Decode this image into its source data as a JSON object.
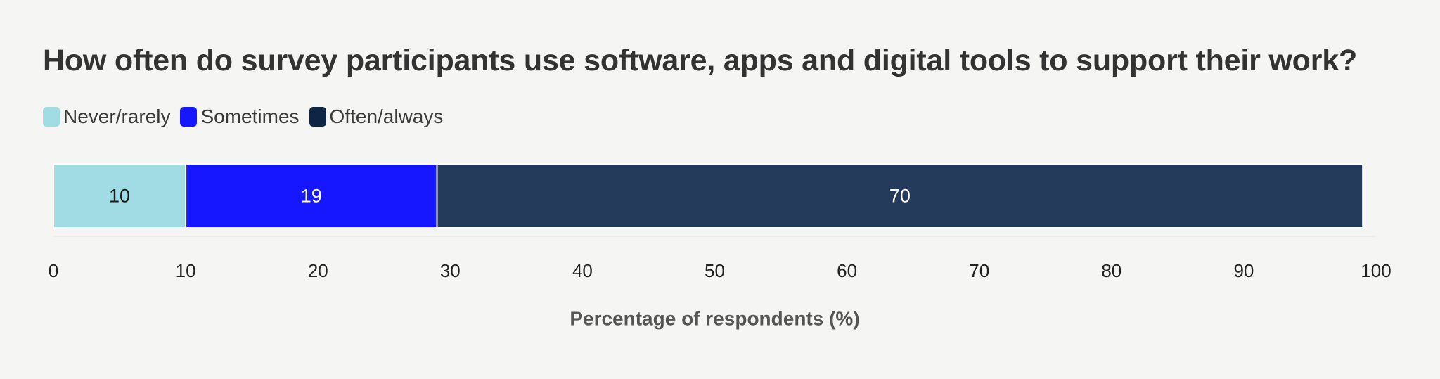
{
  "chart_data": {
    "type": "bar",
    "orientation": "horizontal",
    "stacked": true,
    "title": "How often do survey participants use software, apps and digital tools to support their work?",
    "xlabel": "Percentage of respondents (%)",
    "ylabel": "",
    "xlim": [
      0,
      100
    ],
    "x_ticks": [
      "0",
      "10",
      "20",
      "30",
      "40",
      "50",
      "60",
      "70",
      "80",
      "90",
      "100"
    ],
    "legend_position": "top-left",
    "grid": false,
    "categories": [
      ""
    ],
    "series": [
      {
        "name": "Never/rarely",
        "values": [
          10
        ],
        "label": "10",
        "color": "#a1dbe4",
        "text_color": "#1a1a1a"
      },
      {
        "name": "Sometimes",
        "values": [
          19
        ],
        "label": "19",
        "color": "#1717ff",
        "text_color": "#ffffff"
      },
      {
        "name": "Often/always",
        "values": [
          70
        ],
        "label": "70",
        "color": "#253b5b",
        "text_color": "#ffffff"
      }
    ]
  }
}
